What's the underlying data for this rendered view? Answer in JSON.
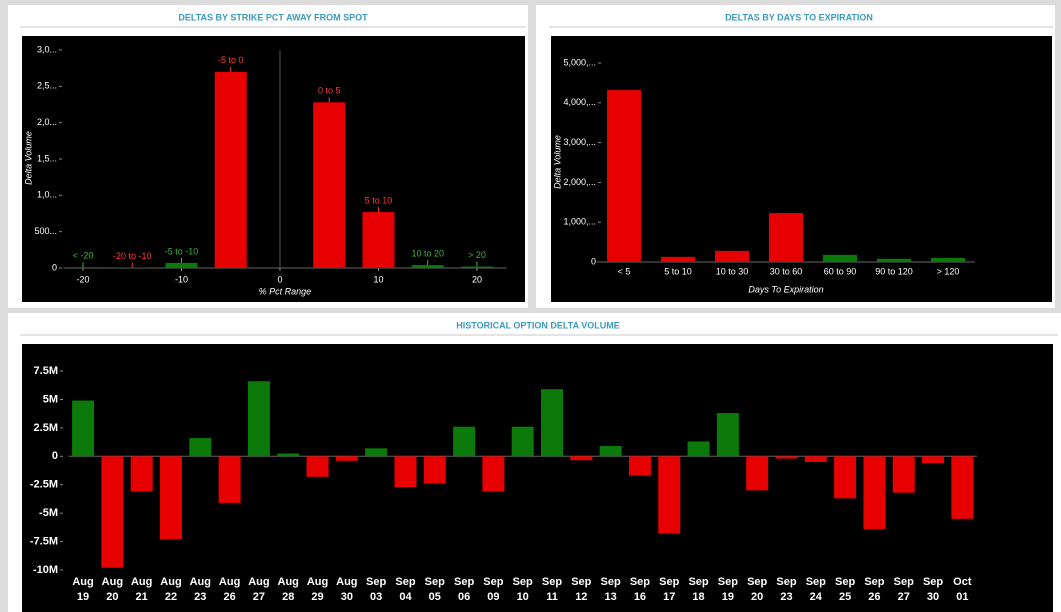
{
  "chart_data": [
    {
      "type": "bar",
      "title": "DELTAS BY STRIKE PCT AWAY FROM SPOT",
      "x_label": "% Pct Range",
      "y_label": "Delta Volume",
      "x": [
        -20,
        -15,
        -10,
        -5,
        5,
        10,
        15,
        20
      ],
      "categories": [
        "< -20",
        "-20 to -10",
        "-5 to -10",
        "-5 to 0",
        "0 to 5",
        "5 to 10",
        "10 to 20",
        "> 20"
      ],
      "values": [
        10000,
        5000,
        70000,
        2700000,
        2280000,
        770000,
        40000,
        20000
      ],
      "colors": [
        "#0b7a0b",
        "#e60000",
        "#0b7a0b",
        "#e60000",
        "#e60000",
        "#e60000",
        "#0b7a0b",
        "#0b7a0b"
      ],
      "label_colors": [
        "#3cb83c",
        "#ff3b3b",
        "#3cb83c",
        "#ff3b3b",
        "#ff3b3b",
        "#ff3b3b",
        "#3cb83c",
        "#3cb83c"
      ],
      "xlim": [
        -22,
        23
      ],
      "xticks": [
        -20,
        -10,
        0,
        10,
        20
      ],
      "ylim": [
        0,
        3000000
      ],
      "yticks": [
        0,
        {
          "value": 500000,
          "label": "500..."
        },
        {
          "value": 1000000,
          "label": "1,0..."
        },
        {
          "value": 1500000,
          "label": "1,5..."
        },
        {
          "value": 2000000,
          "label": "2,0..."
        },
        {
          "value": 2500000,
          "label": "2,5..."
        },
        {
          "value": 3000000,
          "label": "3,0..."
        }
      ]
    },
    {
      "type": "bar",
      "title": "DELTAS BY DAYS TO EXPIRATION",
      "x_label": "Days To Expiration",
      "y_label": "Delta Volume",
      "categories": [
        "< 5",
        "5 to 10",
        "10 to 30",
        "30 to 60",
        "60 to 90",
        "90 to 120",
        "> 120"
      ],
      "values": [
        4320000,
        130000,
        280000,
        1230000,
        180000,
        80000,
        100000
      ],
      "colors": [
        "#e60000",
        "#e60000",
        "#e60000",
        "#e60000",
        "#0b7a0b",
        "#0b7a0b",
        "#0b7a0b"
      ],
      "ylim": [
        0,
        5000000
      ],
      "yticks": [
        0,
        {
          "value": 1000000,
          "label": "1,000,..."
        },
        {
          "value": 2000000,
          "label": "2,000,..."
        },
        {
          "value": 3000000,
          "label": "3,000,..."
        },
        {
          "value": 4000000,
          "label": "4,000,..."
        },
        {
          "value": 5000000,
          "label": "5,000,..."
        }
      ]
    },
    {
      "type": "bar",
      "title": "HISTORICAL OPTION DELTA VOLUME",
      "categories": [
        "Aug 19",
        "Aug 20",
        "Aug 21",
        "Aug 22",
        "Aug 23",
        "Aug 26",
        "Aug 27",
        "Aug 28",
        "Aug 29",
        "Aug 30",
        "Sep 03",
        "Sep 04",
        "Sep 05",
        "Sep 06",
        "Sep 09",
        "Sep 10",
        "Sep 11",
        "Sep 12",
        "Sep 13",
        "Sep 16",
        "Sep 17",
        "Sep 18",
        "Sep 19",
        "Sep 20",
        "Sep 23",
        "Sep 24",
        "Sep 25",
        "Sep 26",
        "Sep 27",
        "Sep 30",
        "Oct 01"
      ],
      "values": [
        4900000,
        -9800000,
        -3100000,
        -7300000,
        1600000,
        -4100000,
        6600000,
        250000,
        -1800000,
        -400000,
        700000,
        -2700000,
        -2400000,
        2600000,
        -3100000,
        2600000,
        5900000,
        -350000,
        900000,
        -1700000,
        -6800000,
        1300000,
        3800000,
        -3000000,
        -200000,
        -500000,
        -3700000,
        -6400000,
        -3200000,
        -600000,
        -5500000
      ],
      "positive_color": "#0b7a0b",
      "negative_color": "#e60000",
      "ylim": [
        -10000000,
        7500000
      ],
      "yticks": [
        {
          "value": -10000000,
          "label": "-10M"
        },
        {
          "value": -7500000,
          "label": "-7.5M"
        },
        {
          "value": -5000000,
          "label": "-5M"
        },
        {
          "value": -2500000,
          "label": "-2.5M"
        },
        0,
        {
          "value": 2500000,
          "label": "2.5M"
        },
        {
          "value": 5000000,
          "label": "5M"
        },
        {
          "value": 7500000,
          "label": "7.5M"
        }
      ]
    }
  ]
}
